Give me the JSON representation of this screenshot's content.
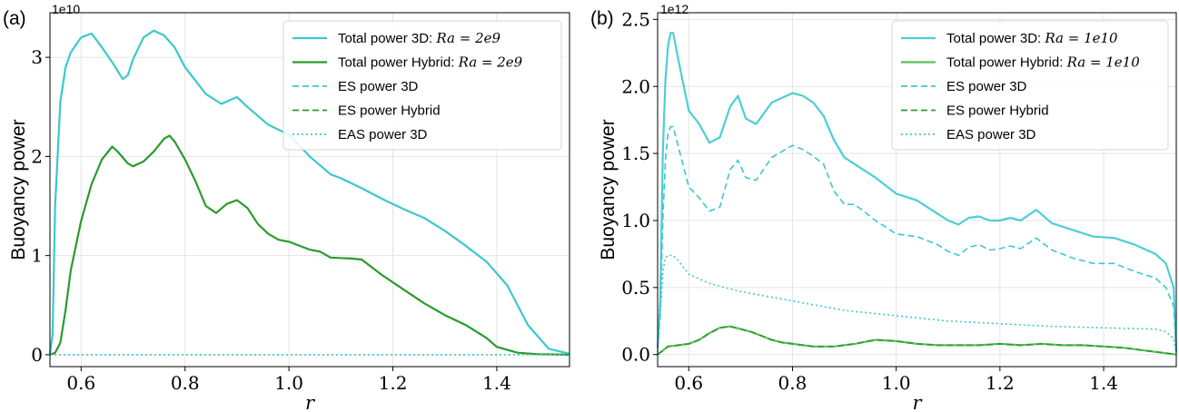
{
  "chart_data": [
    {
      "panel_label": "(a)",
      "type": "line",
      "xlabel": "r",
      "ylabel": "Buoyancy power",
      "y_scale_label": "1e10",
      "xlim": [
        0.54,
        1.54
      ],
      "ylim": [
        -0.12,
        3.45
      ],
      "xticks": [
        0.6,
        0.8,
        1.0,
        1.2,
        1.4
      ],
      "xtick_labels": [
        "0.6",
        "0.8",
        "1.0",
        "1.2",
        "1.4"
      ],
      "yticks": [
        0,
        1,
        2,
        3
      ],
      "ytick_labels": [
        "0",
        "1",
        "2",
        "3"
      ],
      "grid": true,
      "legend_position": "top-right",
      "series": [
        {
          "name": "Total power 3D: ",
          "name_math": "Ra = 2e9",
          "color": "#3cc8cc",
          "style": "solid",
          "x": [
            0.54,
            0.545,
            0.55,
            0.56,
            0.57,
            0.58,
            0.6,
            0.62,
            0.64,
            0.66,
            0.68,
            0.69,
            0.7,
            0.72,
            0.74,
            0.76,
            0.78,
            0.8,
            0.84,
            0.87,
            0.9,
            0.92,
            0.96,
            1.0,
            1.04,
            1.08,
            1.1,
            1.14,
            1.18,
            1.22,
            1.26,
            1.3,
            1.34,
            1.38,
            1.42,
            1.46,
            1.5,
            1.54
          ],
          "y": [
            0.01,
            0.2,
            1.5,
            2.55,
            2.9,
            3.05,
            3.2,
            3.24,
            3.1,
            2.95,
            2.78,
            2.82,
            2.98,
            3.2,
            3.27,
            3.22,
            3.1,
            2.9,
            2.63,
            2.53,
            2.6,
            2.5,
            2.32,
            2.22,
            2.0,
            1.82,
            1.78,
            1.68,
            1.57,
            1.47,
            1.38,
            1.25,
            1.1,
            0.94,
            0.7,
            0.3,
            0.06,
            0.01
          ]
        },
        {
          "name": "Total power Hybrid: ",
          "name_math": "Ra = 2e9",
          "color": "#2c9a2c",
          "style": "solid",
          "x": [
            0.54,
            0.55,
            0.56,
            0.57,
            0.58,
            0.6,
            0.62,
            0.64,
            0.66,
            0.67,
            0.69,
            0.7,
            0.72,
            0.74,
            0.76,
            0.77,
            0.78,
            0.8,
            0.82,
            0.84,
            0.86,
            0.88,
            0.9,
            0.92,
            0.94,
            0.96,
            0.98,
            1.0,
            1.04,
            1.06,
            1.08,
            1.12,
            1.14,
            1.18,
            1.22,
            1.26,
            1.3,
            1.34,
            1.38,
            1.4,
            1.44,
            1.48,
            1.54
          ],
          "y": [
            0.0,
            0.02,
            0.12,
            0.45,
            0.85,
            1.35,
            1.72,
            1.97,
            2.1,
            2.05,
            1.93,
            1.9,
            1.95,
            2.05,
            2.18,
            2.21,
            2.15,
            1.97,
            1.75,
            1.5,
            1.43,
            1.52,
            1.56,
            1.48,
            1.32,
            1.22,
            1.16,
            1.14,
            1.06,
            1.04,
            0.98,
            0.97,
            0.96,
            0.8,
            0.66,
            0.52,
            0.4,
            0.3,
            0.17,
            0.08,
            0.02,
            0.005,
            0.0
          ]
        },
        {
          "name": "ES power 3D",
          "color": "#3cc8cc",
          "style": "dashed",
          "same_as": "Total power 3D"
        },
        {
          "name": "ES power Hybrid",
          "color": "#2c9a2c",
          "style": "dashed",
          "same_as": "Total power Hybrid"
        },
        {
          "name": "EAS power 3D",
          "color": "#3cc8cc",
          "style": "dotted",
          "x": [
            0.54,
            1.54
          ],
          "y": [
            0.0,
            0.0
          ]
        }
      ]
    },
    {
      "panel_label": "(b)",
      "type": "line",
      "xlabel": "r",
      "ylabel": "Buoyancy power",
      "y_scale_label": "1e12",
      "xlim": [
        0.54,
        1.54
      ],
      "ylim": [
        -0.09,
        2.55
      ],
      "xticks": [
        0.6,
        0.8,
        1.0,
        1.2,
        1.4
      ],
      "xtick_labels": [
        "0.6",
        "0.8",
        "1.0",
        "1.2",
        "1.4"
      ],
      "yticks": [
        0.0,
        0.5,
        1.0,
        1.5,
        2.0,
        2.5
      ],
      "ytick_labels": [
        "0.0",
        "0.5",
        "1.0",
        "1.5",
        "2.0",
        "2.5"
      ],
      "grid": true,
      "legend_position": "top-right",
      "series": [
        {
          "name": "Total power 3D: ",
          "name_math": "Ra = 1e10",
          "color": "#4ccfd3",
          "style": "solid",
          "x": [
            0.54,
            0.545,
            0.55,
            0.555,
            0.56,
            0.565,
            0.57,
            0.58,
            0.6,
            0.62,
            0.64,
            0.66,
            0.68,
            0.695,
            0.71,
            0.73,
            0.76,
            0.8,
            0.82,
            0.84,
            0.86,
            0.88,
            0.9,
            0.92,
            0.96,
            1.0,
            1.04,
            1.08,
            1.1,
            1.12,
            1.14,
            1.16,
            1.18,
            1.2,
            1.22,
            1.24,
            1.27,
            1.3,
            1.34,
            1.38,
            1.42,
            1.46,
            1.5,
            1.52,
            1.535,
            1.54
          ],
          "y": [
            0.05,
            0.4,
            1.5,
            2.05,
            2.3,
            2.4,
            2.4,
            2.2,
            1.82,
            1.72,
            1.58,
            1.62,
            1.85,
            1.93,
            1.76,
            1.72,
            1.88,
            1.95,
            1.93,
            1.88,
            1.78,
            1.6,
            1.47,
            1.42,
            1.32,
            1.2,
            1.15,
            1.05,
            1.0,
            0.97,
            1.02,
            1.03,
            1.0,
            1.0,
            1.02,
            1.0,
            1.08,
            0.98,
            0.93,
            0.88,
            0.87,
            0.82,
            0.75,
            0.68,
            0.5,
            0.02
          ]
        },
        {
          "name": "Total power Hybrid: ",
          "name_math": "Ra = 1e10",
          "color": "#5cc05c",
          "style": "solid",
          "x": [
            0.54,
            0.55,
            0.56,
            0.58,
            0.6,
            0.62,
            0.64,
            0.66,
            0.68,
            0.7,
            0.72,
            0.74,
            0.76,
            0.78,
            0.8,
            0.84,
            0.88,
            0.92,
            0.96,
            1.0,
            1.04,
            1.08,
            1.12,
            1.16,
            1.2,
            1.24,
            1.28,
            1.32,
            1.36,
            1.4,
            1.44,
            1.48,
            1.52,
            1.54
          ],
          "y": [
            0.0,
            0.03,
            0.06,
            0.07,
            0.08,
            0.11,
            0.16,
            0.2,
            0.21,
            0.19,
            0.17,
            0.14,
            0.11,
            0.09,
            0.08,
            0.06,
            0.06,
            0.08,
            0.11,
            0.1,
            0.08,
            0.07,
            0.07,
            0.07,
            0.08,
            0.07,
            0.08,
            0.07,
            0.07,
            0.06,
            0.05,
            0.03,
            0.01,
            0.0
          ]
        },
        {
          "name": "ES power 3D",
          "color": "#3cc8cc",
          "style": "dashed",
          "x": [
            0.54,
            0.545,
            0.55,
            0.555,
            0.56,
            0.565,
            0.57,
            0.58,
            0.6,
            0.62,
            0.64,
            0.66,
            0.68,
            0.695,
            0.71,
            0.73,
            0.76,
            0.8,
            0.82,
            0.84,
            0.86,
            0.88,
            0.9,
            0.92,
            0.96,
            1.0,
            1.04,
            1.08,
            1.1,
            1.12,
            1.14,
            1.16,
            1.18,
            1.2,
            1.22,
            1.24,
            1.27,
            1.3,
            1.34,
            1.38,
            1.42,
            1.46,
            1.5,
            1.52,
            1.535,
            1.54
          ],
          "y": [
            0.04,
            0.3,
            1.0,
            1.45,
            1.65,
            1.7,
            1.7,
            1.55,
            1.25,
            1.17,
            1.07,
            1.1,
            1.38,
            1.45,
            1.32,
            1.3,
            1.47,
            1.56,
            1.53,
            1.48,
            1.42,
            1.22,
            1.12,
            1.12,
            1.0,
            0.9,
            0.88,
            0.82,
            0.77,
            0.74,
            0.8,
            0.82,
            0.78,
            0.79,
            0.81,
            0.79,
            0.87,
            0.78,
            0.72,
            0.68,
            0.68,
            0.62,
            0.57,
            0.5,
            0.36,
            0.02
          ]
        },
        {
          "name": "ES power Hybrid",
          "color": "#2c9a2c",
          "style": "dashed",
          "same_as": "Total power Hybrid"
        },
        {
          "name": "EAS power 3D",
          "color": "#3cc8cc",
          "style": "dotted",
          "x": [
            0.54,
            0.545,
            0.55,
            0.555,
            0.56,
            0.57,
            0.58,
            0.6,
            0.64,
            0.7,
            0.8,
            0.9,
            1.0,
            1.1,
            1.2,
            1.3,
            1.4,
            1.5,
            1.52,
            1.535,
            1.54
          ],
          "y": [
            0.02,
            0.3,
            0.62,
            0.72,
            0.74,
            0.74,
            0.7,
            0.6,
            0.53,
            0.47,
            0.4,
            0.33,
            0.29,
            0.25,
            0.23,
            0.21,
            0.2,
            0.19,
            0.17,
            0.12,
            0.0
          ]
        }
      ]
    }
  ]
}
